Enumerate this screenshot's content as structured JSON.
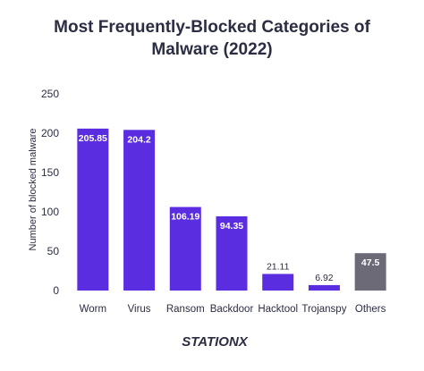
{
  "title_line1": "Most Frequently-Blocked Categories of",
  "title_line2": "Malware (2022)",
  "logo_text": "STATIONX",
  "chart_data": {
    "type": "bar",
    "title": "Most Frequently-Blocked Categories of Malware (2022)",
    "xlabel": "",
    "ylabel": "Number of blocked malware",
    "ylim": [
      0,
      250
    ],
    "yticks": [
      0,
      50,
      100,
      150,
      200,
      250
    ],
    "categories": [
      "Worm",
      "Virus",
      "Ransom",
      "Backdoor",
      "Hacktool",
      "Trojanspy",
      "Others"
    ],
    "values": [
      205.85,
      204.2,
      106.19,
      94.35,
      21.11,
      6.92,
      47.5
    ],
    "value_labels": [
      "205.85",
      "204.2",
      "106.19",
      "94.35",
      "21.11",
      "6.92",
      "47.5"
    ],
    "colors": [
      "#5b2de0",
      "#5b2de0",
      "#5b2de0",
      "#5b2de0",
      "#5b2de0",
      "#5b2de0",
      "#6d6a78"
    ],
    "grid": false,
    "legend": "none"
  }
}
